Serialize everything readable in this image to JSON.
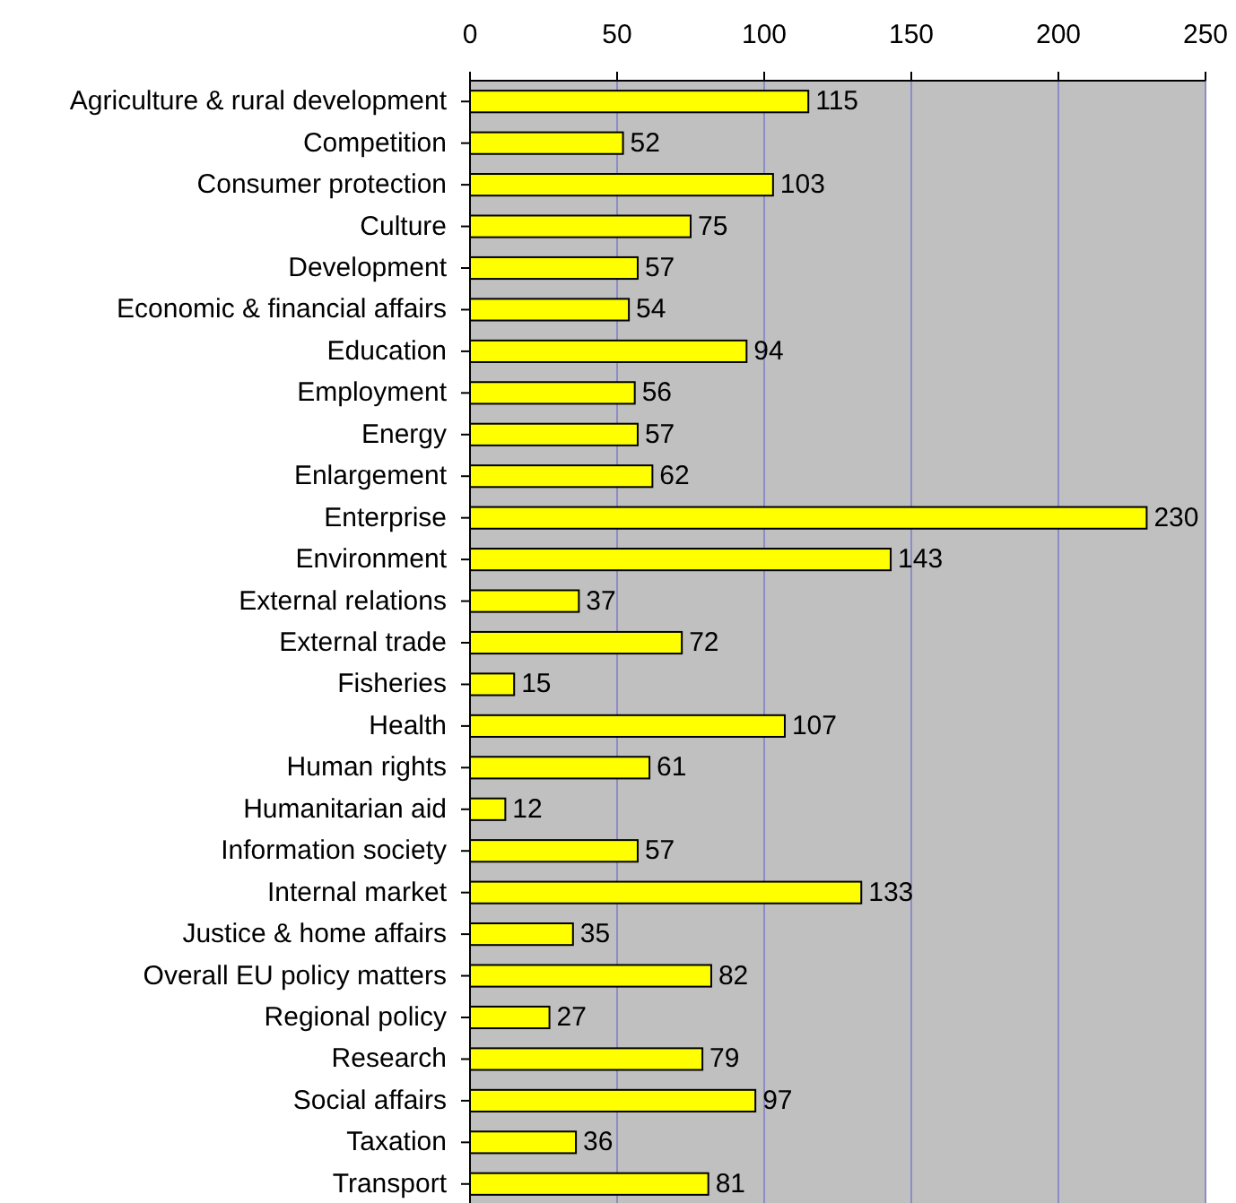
{
  "chart_data": {
    "type": "bar",
    "orientation": "horizontal",
    "categories": [
      "Agriculture & rural development",
      "Competition",
      "Consumer protection",
      "Culture",
      "Development",
      "Economic & financial affairs",
      "Education",
      "Employment",
      "Energy",
      "Enlargement",
      "Enterprise",
      "Environment",
      "External relations",
      "External trade",
      "Fisheries",
      "Health",
      "Human rights",
      "Humanitarian aid",
      "Information society",
      "Internal market",
      "Justice & home affairs",
      "Overall EU policy matters",
      "Regional policy",
      "Research",
      "Social affairs",
      "Taxation",
      "Transport"
    ],
    "values": [
      115,
      52,
      103,
      75,
      57,
      54,
      94,
      56,
      57,
      62,
      230,
      143,
      37,
      72,
      15,
      107,
      61,
      12,
      57,
      133,
      35,
      82,
      27,
      79,
      97,
      36,
      81
    ],
    "color": "#ffff00",
    "xlim": [
      0,
      250
    ],
    "xticks": [
      0,
      50,
      100,
      150,
      200,
      250
    ],
    "grid": "x",
    "data_labels": true
  }
}
